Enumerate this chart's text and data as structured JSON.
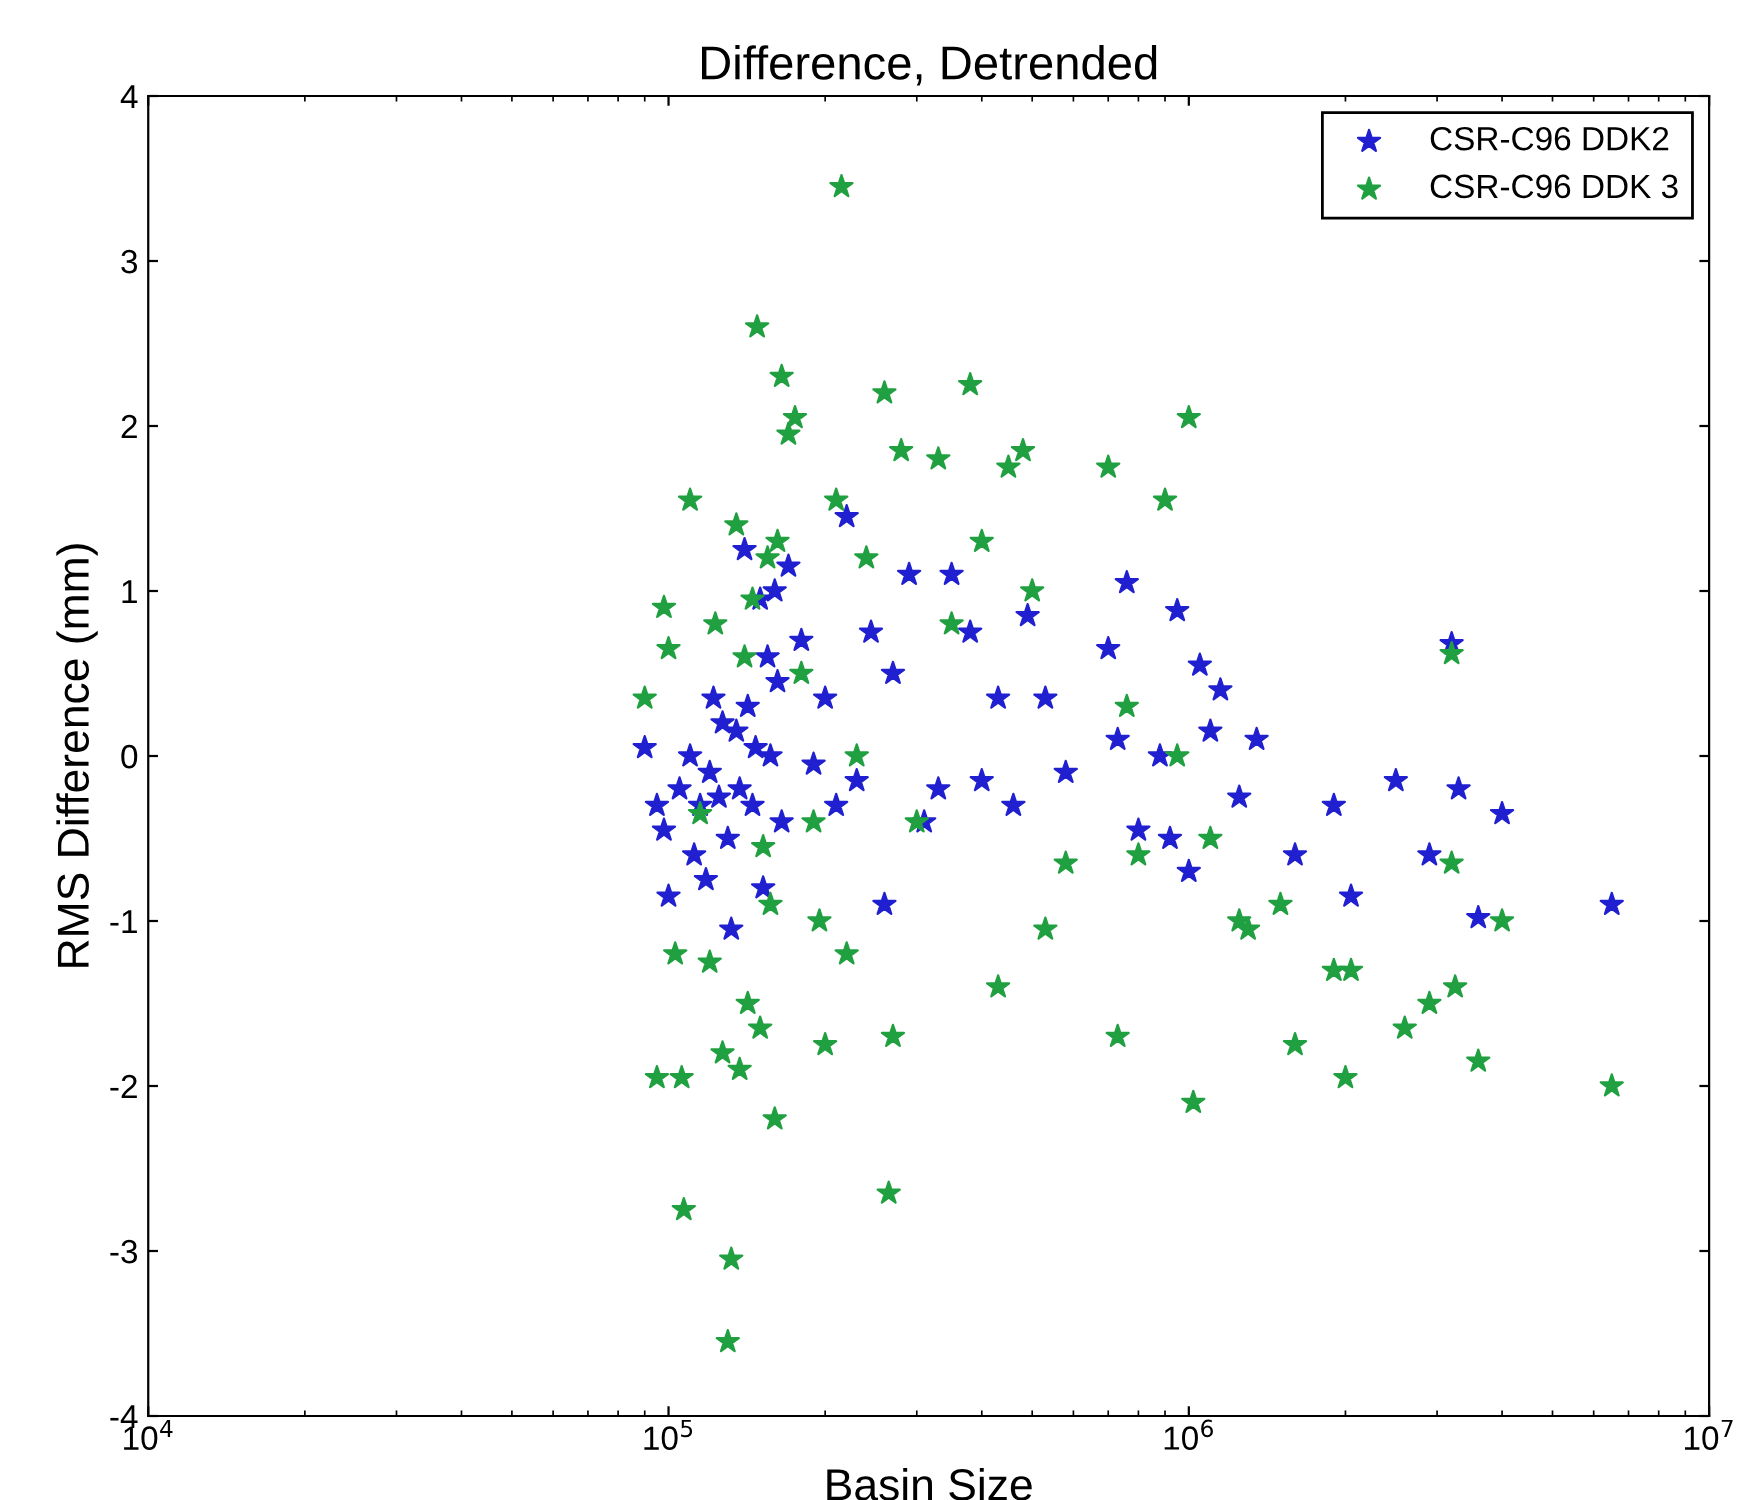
{
  "chart_data": {
    "type": "scatter",
    "title": "Difference, Detrended",
    "xlabel": "Basin Size",
    "ylabel": "RMS Difference (mm)",
    "log": "x",
    "grid": false,
    "legend": "top right",
    "marker": "star",
    "xlim": [
      10000,
      10000000
    ],
    "xticks": [
      {
        "value": 10000,
        "label": "10$^{4}$"
      },
      {
        "value": 100000,
        "label": "10$^{5}$"
      },
      {
        "value": 1000000,
        "label": "10$^{6}$"
      },
      {
        "value": 10000000,
        "label": "10$^{7}$"
      }
    ],
    "ylim": [
      -4,
      4
    ],
    "yticks": [
      -4,
      -3,
      -2,
      -1,
      0,
      1,
      2,
      3,
      4
    ],
    "series": [
      {
        "name": "CSR-C96 DDK2",
        "color": "#2020d0",
        "x": [
          90000,
          95000,
          98000,
          100000,
          105000,
          110000,
          112000,
          115000,
          118000,
          120000,
          122000,
          125000,
          127000,
          130000,
          132000,
          135000,
          137000,
          140000,
          142000,
          145000,
          147000,
          150000,
          152000,
          155000,
          157000,
          160000,
          162000,
          165000,
          170000,
          180000,
          190000,
          200000,
          210000,
          220000,
          230000,
          245000,
          260000,
          270000,
          290000,
          310000,
          330000,
          350000,
          380000,
          400000,
          430000,
          460000,
          490000,
          530000,
          580000,
          700000,
          730000,
          760000,
          800000,
          880000,
          920000,
          950000,
          1000000,
          1050000,
          1100000,
          1150000,
          1250000,
          1350000,
          1600000,
          1900000,
          2050000,
          2500000,
          2900000,
          3200000,
          3300000,
          3600000,
          4000000,
          6500000
        ],
        "values": [
          0.05,
          -0.3,
          -0.45,
          -0.85,
          -0.2,
          0.0,
          -0.6,
          -0.3,
          -0.75,
          -0.1,
          0.35,
          -0.25,
          0.2,
          -0.5,
          -1.05,
          0.15,
          -0.2,
          1.25,
          0.3,
          -0.3,
          0.05,
          0.95,
          -0.8,
          0.6,
          0.0,
          1.0,
          0.45,
          -0.4,
          1.15,
          0.7,
          -0.05,
          0.35,
          -0.3,
          1.45,
          -0.15,
          0.75,
          -0.9,
          0.5,
          1.1,
          -0.4,
          -0.2,
          1.1,
          0.75,
          -0.15,
          0.35,
          -0.3,
          0.85,
          0.35,
          -0.1,
          0.65,
          0.1,
          1.05,
          -0.45,
          0.0,
          -0.5,
          0.88,
          -0.7,
          0.55,
          0.15,
          0.4,
          -0.25,
          0.1,
          -0.6,
          -0.3,
          -0.85,
          -0.15,
          -0.6,
          0.68,
          -0.2,
          -0.98,
          -0.35,
          -0.9
        ]
      },
      {
        "name": "CSR-C96 DDK 3",
        "color": "#20a040",
        "x": [
          90000,
          95000,
          98000,
          100000,
          103000,
          106000,
          107000,
          110000,
          115000,
          120000,
          123000,
          127000,
          130000,
          132000,
          135000,
          137000,
          140000,
          142000,
          145000,
          148000,
          150000,
          152000,
          155000,
          157000,
          160000,
          162000,
          165000,
          170000,
          175000,
          180000,
          190000,
          195000,
          200000,
          210000,
          215000,
          220000,
          230000,
          240000,
          260000,
          265000,
          270000,
          280000,
          300000,
          330000,
          350000,
          380000,
          400000,
          430000,
          450000,
          480000,
          500000,
          530000,
          580000,
          700000,
          730000,
          760000,
          800000,
          900000,
          950000,
          1000000,
          1020000,
          1100000,
          1250000,
          1300000,
          1500000,
          1600000,
          1900000,
          2000000,
          2050000,
          2600000,
          2900000,
          3200000,
          3250000,
          3600000,
          4000000,
          6500000,
          3200000
        ],
        "values": [
          0.35,
          -1.95,
          0.9,
          0.65,
          -1.2,
          -1.95,
          -2.75,
          1.55,
          -0.35,
          -1.25,
          0.8,
          -1.8,
          -3.55,
          -3.05,
          1.4,
          -1.9,
          0.6,
          -1.5,
          0.95,
          2.6,
          -1.65,
          -0.55,
          1.2,
          -0.9,
          -2.2,
          1.3,
          2.3,
          1.95,
          2.05,
          0.5,
          -0.4,
          -1.0,
          -1.75,
          1.55,
          3.45,
          -1.2,
          0.0,
          1.2,
          2.2,
          -2.65,
          -1.7,
          1.85,
          -0.4,
          1.8,
          0.8,
          2.25,
          1.3,
          -1.4,
          1.75,
          1.85,
          1.0,
          -1.05,
          -0.65,
          1.75,
          -1.7,
          0.3,
          -0.6,
          1.55,
          0.0,
          2.05,
          -2.1,
          -0.5,
          -1.0,
          -1.05,
          -0.9,
          -1.75,
          -1.3,
          -1.95,
          -1.3,
          -1.65,
          -1.5,
          -0.65,
          -1.4,
          -1.85,
          -1.0,
          -2.0,
          0.62
        ]
      }
    ]
  }
}
